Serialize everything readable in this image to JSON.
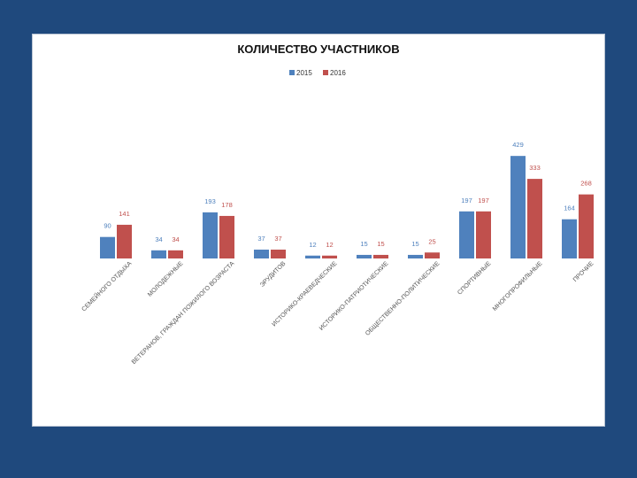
{
  "chart_data": {
    "type": "bar",
    "title": "КОЛИЧЕСТВО УЧАСТНИКОВ",
    "xlabel": "",
    "ylabel": "",
    "legend_position": "top-center",
    "grid": false,
    "ylim": [
      0,
      460
    ],
    "categories": [
      "СЕМЕЙНОГО ОТДЫХА",
      "МОЛОДЕЖНЫЕ",
      "ВЕТЕРАНОВ, ГРАЖДАН ПОЖИЛОГО ВОЗРАСТА",
      "ЭРУДИТОВ",
      "ИСТОРИКО-КРАЕВЕДЧЕСКИЕ",
      "ИСТОРИКО-ПАТРИОТИЧЕСКИЕ",
      "ОБЩЕСТВЕННО-ПОЛИТИЧЕСКИЕ",
      "СПОРТИВНЫЕ",
      "МНОГОПРОФИЛЬНЫЕ",
      "ПРОЧИЕ"
    ],
    "series": [
      {
        "name": "2015",
        "color": "#4f81bd",
        "values": [
          90,
          34,
          193,
          37,
          12,
          15,
          15,
          197,
          429,
          164
        ]
      },
      {
        "name": "2016",
        "color": "#c0504d",
        "values": [
          141,
          34,
          178,
          37,
          12,
          15,
          25,
          197,
          333,
          268
        ]
      }
    ]
  }
}
